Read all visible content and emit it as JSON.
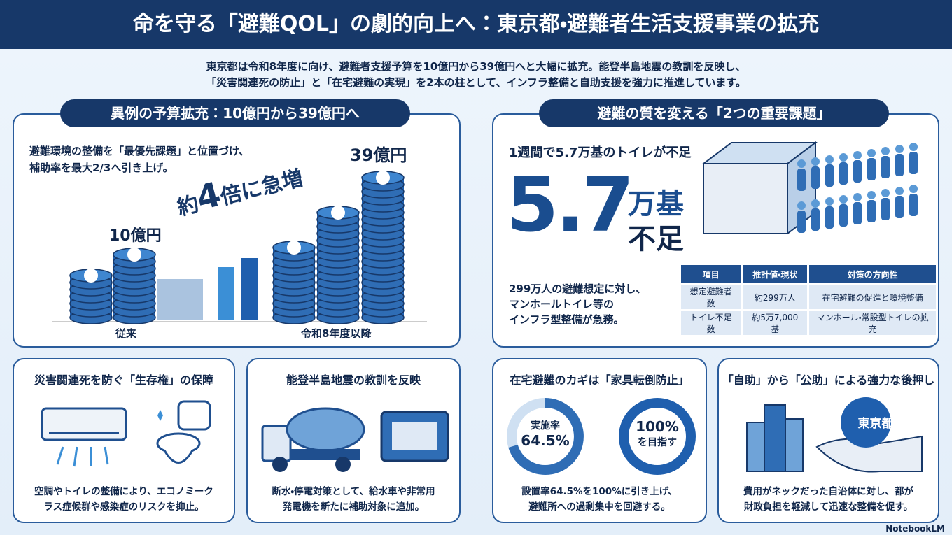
{
  "header": {
    "title": "命を守る「避難QOL」の劇的向上へ：東京都・避難者生活支援事業の拡充",
    "lead": [
      "東京都は令和8年度に向け、避難者支援予算を10億円から39億円へと大幅に拡充。能登半島地震の教訓を反映し、",
      "「災害関連死の防止」と「在宅避難の実現」を2本の柱として、インフラ整備と自助支援を強力に推進しています。"
    ]
  },
  "budget": {
    "title": "異例の予算拡充：10億円から39億円へ",
    "text": [
      "避難環境の整備を「最優先課題」と位置づけ、",
      "補助率を最大2/3へ引き上げ。"
    ],
    "callout": [
      "約",
      "4",
      "倍に急増"
    ],
    "before_amount": "10億円",
    "after_amount": "39億円",
    "before_label": "従来",
    "after_label": "令和8年度以降"
  },
  "issues": {
    "title": "避難の質を変える「2つの重要課題」",
    "subtitle": "1週間で5.7万基のトイレが不足",
    "big_number": "5.7",
    "big_unit": "万基",
    "big_suffix": "不足",
    "text": [
      "299万人の避難想定に対し、",
      "マンホールトイレ等の",
      "インフラ型整備が急務。"
    ],
    "table": {
      "header": [
        "項目",
        "推計値・現状",
        "対策の方向性"
      ],
      "rows": [
        [
          "想定避難者数",
          "約299万人",
          "在宅避難の促進と環境整備"
        ],
        [
          "トイレ不足数",
          "約5万7,000基",
          "マンホール・常設型トイレの拡充"
        ]
      ]
    }
  },
  "cards": [
    {
      "title": "災害関連死を防ぐ「生存権」の保障",
      "text": [
        "空調やトイレの整備により、エコノミーク",
        "ラス症候群や感染症のリスクを抑止。"
      ]
    },
    {
      "title": "能登半島地震の教訓を反映",
      "text": [
        "断水・停電対策として、給水車や非常用",
        "発電機を新たに補助対象に追加。"
      ]
    },
    {
      "title": "在宅避難のカギは「家具転倒防止」",
      "donut_current": [
        "実施率",
        "64.5%"
      ],
      "donut_goal": [
        "100%",
        "を目指す"
      ],
      "text": [
        "設置率64.5%を100%に引き上げ、",
        "避難所への過剰集中を回避する。"
      ]
    },
    {
      "title": "「自助」から「公助」による強力な後押し",
      "badge": "東京都",
      "text": [
        "費用がネックだった自治体に対し、都が",
        "財政負担を軽減して迅速な整備を促す。"
      ]
    }
  ],
  "footer": "NotebookLM"
}
